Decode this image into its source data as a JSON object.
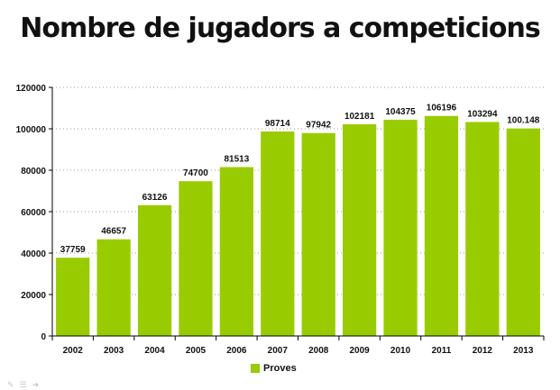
{
  "chart_data": {
    "type": "bar",
    "title": "Nombre de jugadors a competicions",
    "categories": [
      "2002",
      "2003",
      "2004",
      "2005",
      "2006",
      "2007",
      "2008",
      "2009",
      "2010",
      "2011",
      "2012",
      "2013"
    ],
    "series": [
      {
        "name": "Proves",
        "values": [
          37759,
          46657,
          63126,
          74700,
          81513,
          98714,
          97942,
          102181,
          104375,
          106196,
          103294,
          100148
        ],
        "labels": [
          "37759",
          "46657",
          "63126",
          "74700",
          "81513",
          "98714",
          "97942",
          "102181",
          "104375",
          "106196",
          "103294",
          "100.148"
        ]
      }
    ],
    "ylim": [
      0,
      120000
    ],
    "yticks": [
      0,
      20000,
      40000,
      60000,
      80000,
      100000,
      120000
    ],
    "grid": true,
    "legend_position": "bottom",
    "colors": {
      "bar": "#99cc00",
      "grid": "#9a9a9a",
      "axis": "#000000"
    }
  },
  "legend": {
    "label": "Proves"
  },
  "icons": [
    "pencil-icon",
    "menu-icon",
    "next-arrow-icon"
  ]
}
